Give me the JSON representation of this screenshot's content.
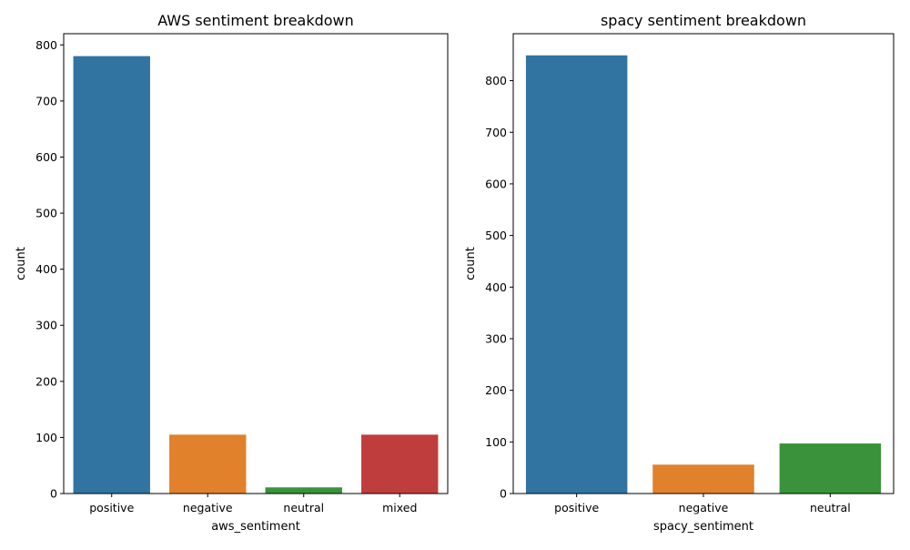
{
  "chart_data": [
    {
      "type": "bar",
      "title": "AWS sentiment breakdown",
      "xlabel": "aws_sentiment",
      "ylabel": "count",
      "categories": [
        "positive",
        "negative",
        "neutral",
        "mixed"
      ],
      "values": [
        780,
        105,
        11,
        105
      ],
      "colors": [
        "#3274a1",
        "#e1812c",
        "#3a923a",
        "#c03d3e"
      ],
      "ylim": [
        0,
        820
      ],
      "yticks": [
        0,
        100,
        200,
        300,
        400,
        500,
        600,
        700,
        800
      ],
      "grid": false,
      "legend": "none"
    },
    {
      "type": "bar",
      "title": "spacy sentiment breakdown",
      "xlabel": "spacy_sentiment",
      "ylabel": "count",
      "categories": [
        "positive",
        "negative",
        "neutral"
      ],
      "values": [
        849,
        56,
        97
      ],
      "colors": [
        "#3274a1",
        "#e1812c",
        "#3a923a"
      ],
      "ylim": [
        0,
        891
      ],
      "yticks": [
        0,
        100,
        200,
        300,
        400,
        500,
        600,
        700,
        800
      ],
      "grid": false,
      "legend": "none"
    }
  ]
}
